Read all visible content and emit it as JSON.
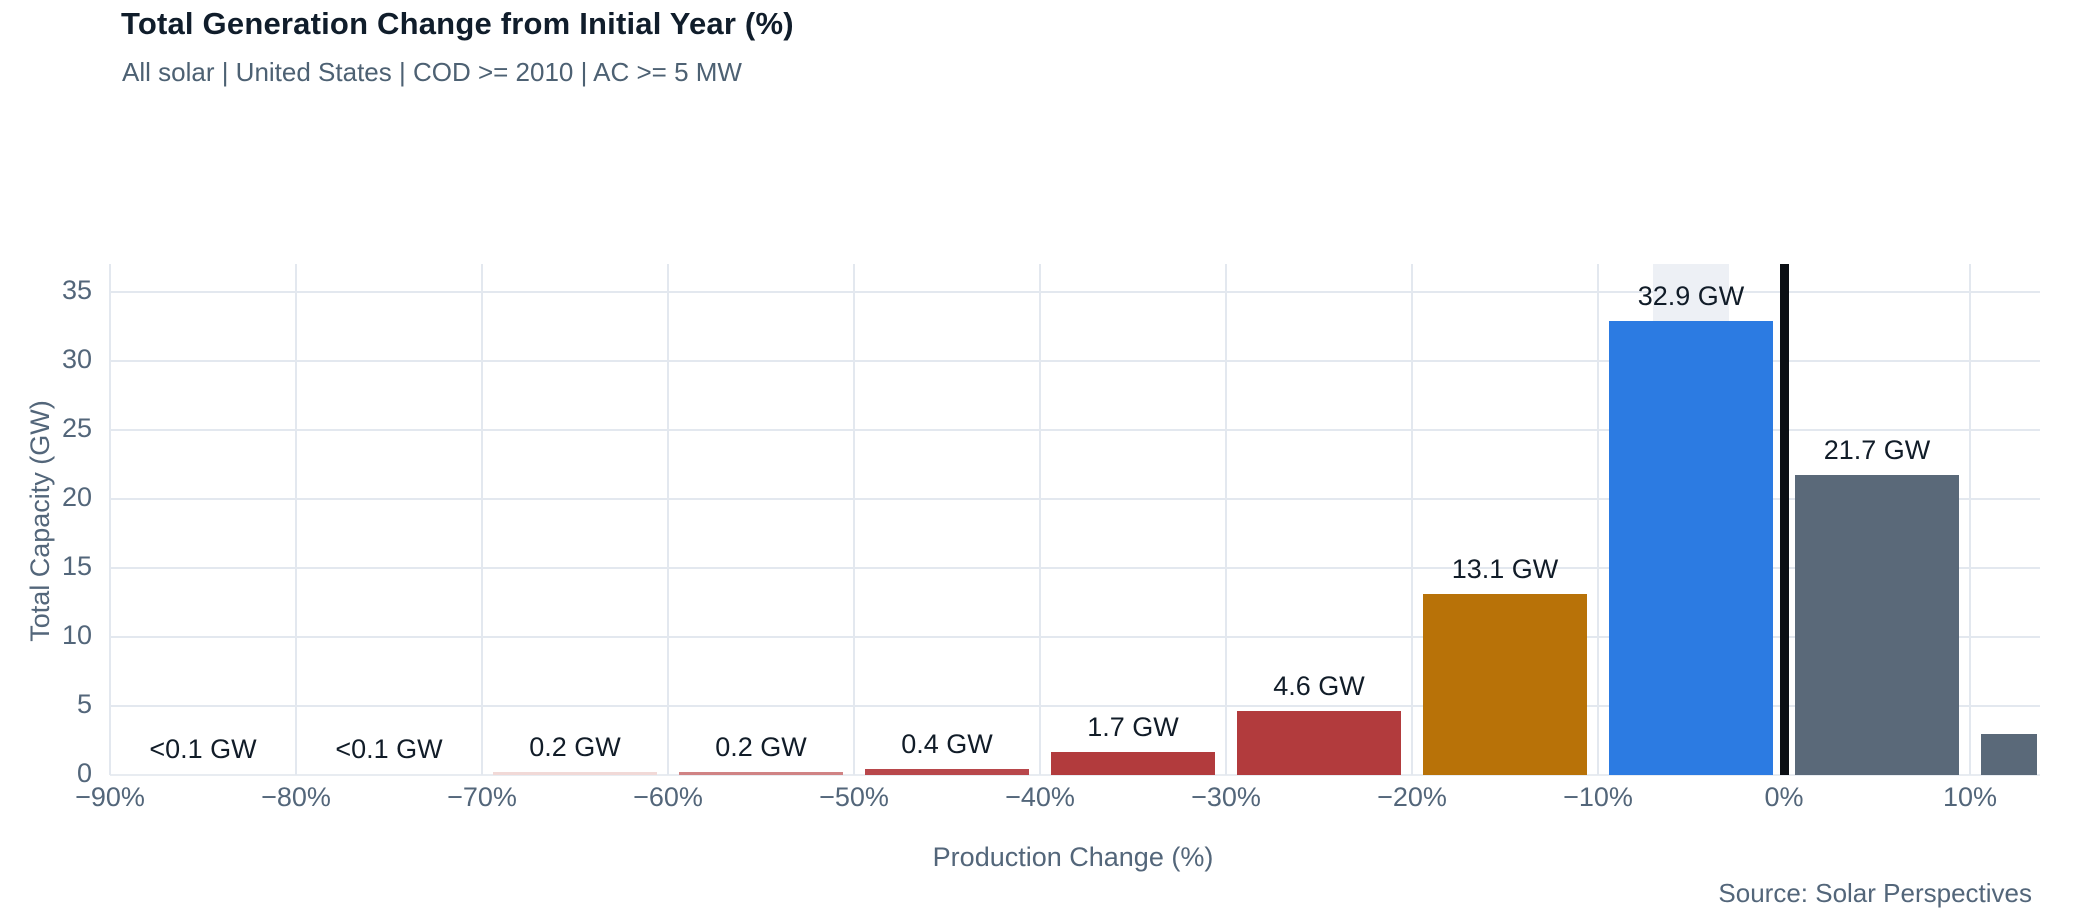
{
  "chart_data": {
    "type": "bar",
    "title": "Total Generation Change from Initial Year (%)",
    "subtitle": "All solar | United States | COD >= 2010 | AC >= 5 MW",
    "xlabel": "Production Change (%)",
    "ylabel": "Total Capacity (GW)",
    "source": "Source: Solar Perspectives",
    "x_tick_labels": [
      "−90%",
      "−80%",
      "−70%",
      "−60%",
      "−50%",
      "−40%",
      "−30%",
      "−20%",
      "−10%",
      "0%",
      "10%"
    ],
    "y_tick_values": [
      0,
      5,
      10,
      15,
      20,
      25,
      30,
      35
    ],
    "ylim": [
      0,
      37
    ],
    "grid": true,
    "legend_position": "none",
    "zero_reference_line_at": "0%",
    "bins": [
      {
        "range": "-90% to -80%",
        "value_gw": 0.05,
        "label": "<0.1 GW",
        "color": "#f7e8e7"
      },
      {
        "range": "-80% to -70%",
        "value_gw": 0.05,
        "label": "<0.1 GW",
        "color": "#f7e8e7"
      },
      {
        "range": "-70% to -60%",
        "value_gw": 0.2,
        "label": "0.2 GW",
        "color": "#f1d9d7"
      },
      {
        "range": "-60% to -50%",
        "value_gw": 0.2,
        "label": "0.2 GW",
        "color": "#d08384"
      },
      {
        "range": "-50% to -40%",
        "value_gw": 0.4,
        "label": "0.4 GW",
        "color": "#b8474b"
      },
      {
        "range": "-40% to -30%",
        "value_gw": 1.7,
        "label": "1.7 GW",
        "color": "#b23b3d"
      },
      {
        "range": "-30% to -20%",
        "value_gw": 4.6,
        "label": "4.6 GW",
        "color": "#b23b3d"
      },
      {
        "range": "-20% to -10%",
        "value_gw": 13.1,
        "label": "13.1 GW",
        "color": "#b87208"
      },
      {
        "range": "-10% to 0%",
        "value_gw": 32.9,
        "label": "32.9 GW",
        "color": "#2c7be2",
        "highlight_band": true
      },
      {
        "range": "0% to 10%",
        "value_gw": 21.7,
        "label": "21.7 GW",
        "color": "#5a6979"
      },
      {
        "range": ">10% (clipped at axis edge)",
        "value_gw": 3.0,
        "label": "",
        "color": "#5a6979",
        "partial": true
      }
    ],
    "colors": {
      "title_text": "#101d2b",
      "muted_text": "#53667a",
      "bar_label_text": "#111c28",
      "gridline": "#e3e8ef",
      "baseline": "#e8ecf1",
      "zero_line": "#0b0f14",
      "highlight_band": "#edf0f5",
      "background": "#ffffff"
    }
  }
}
